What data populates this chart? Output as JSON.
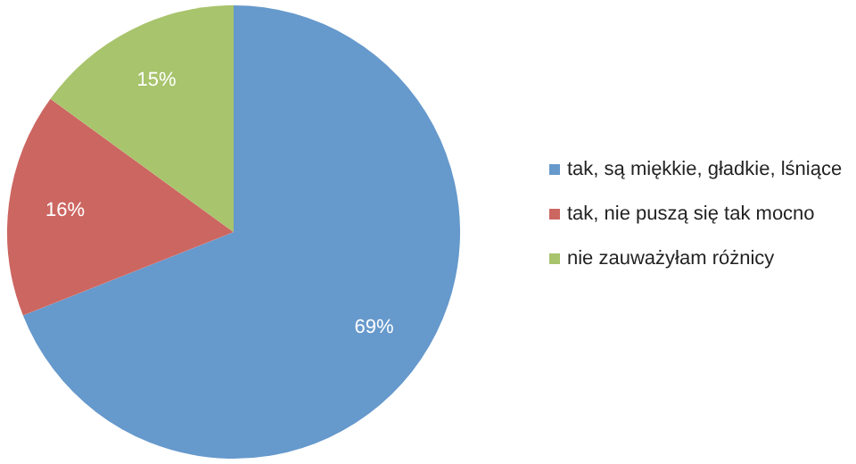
{
  "chart_data": {
    "type": "pie",
    "categories": [
      "tak, są miękkie, gładkie, lśniące",
      "tak, nie puszą się tak mocno",
      "nie zauważyłam różnicy"
    ],
    "values": [
      69,
      16,
      15
    ],
    "colors": [
      "#6699cc",
      "#cc6661",
      "#a8c46c"
    ],
    "value_labels": [
      "69%",
      "16%",
      "15%"
    ],
    "legend": "right"
  }
}
